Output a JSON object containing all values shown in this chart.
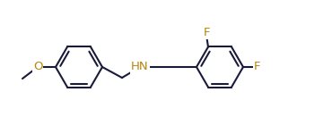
{
  "bg_color": "#ffffff",
  "bond_color": "#1a1a3a",
  "atom_color": "#b8860b",
  "lw": 1.5,
  "r": 26,
  "lcx": 88,
  "lcy": 75,
  "rcx": 245,
  "rcy": 75,
  "figw": 3.7,
  "figh": 1.5,
  "dpi": 100,
  "xlim": [
    0,
    370
  ],
  "ylim": [
    0,
    150
  ]
}
